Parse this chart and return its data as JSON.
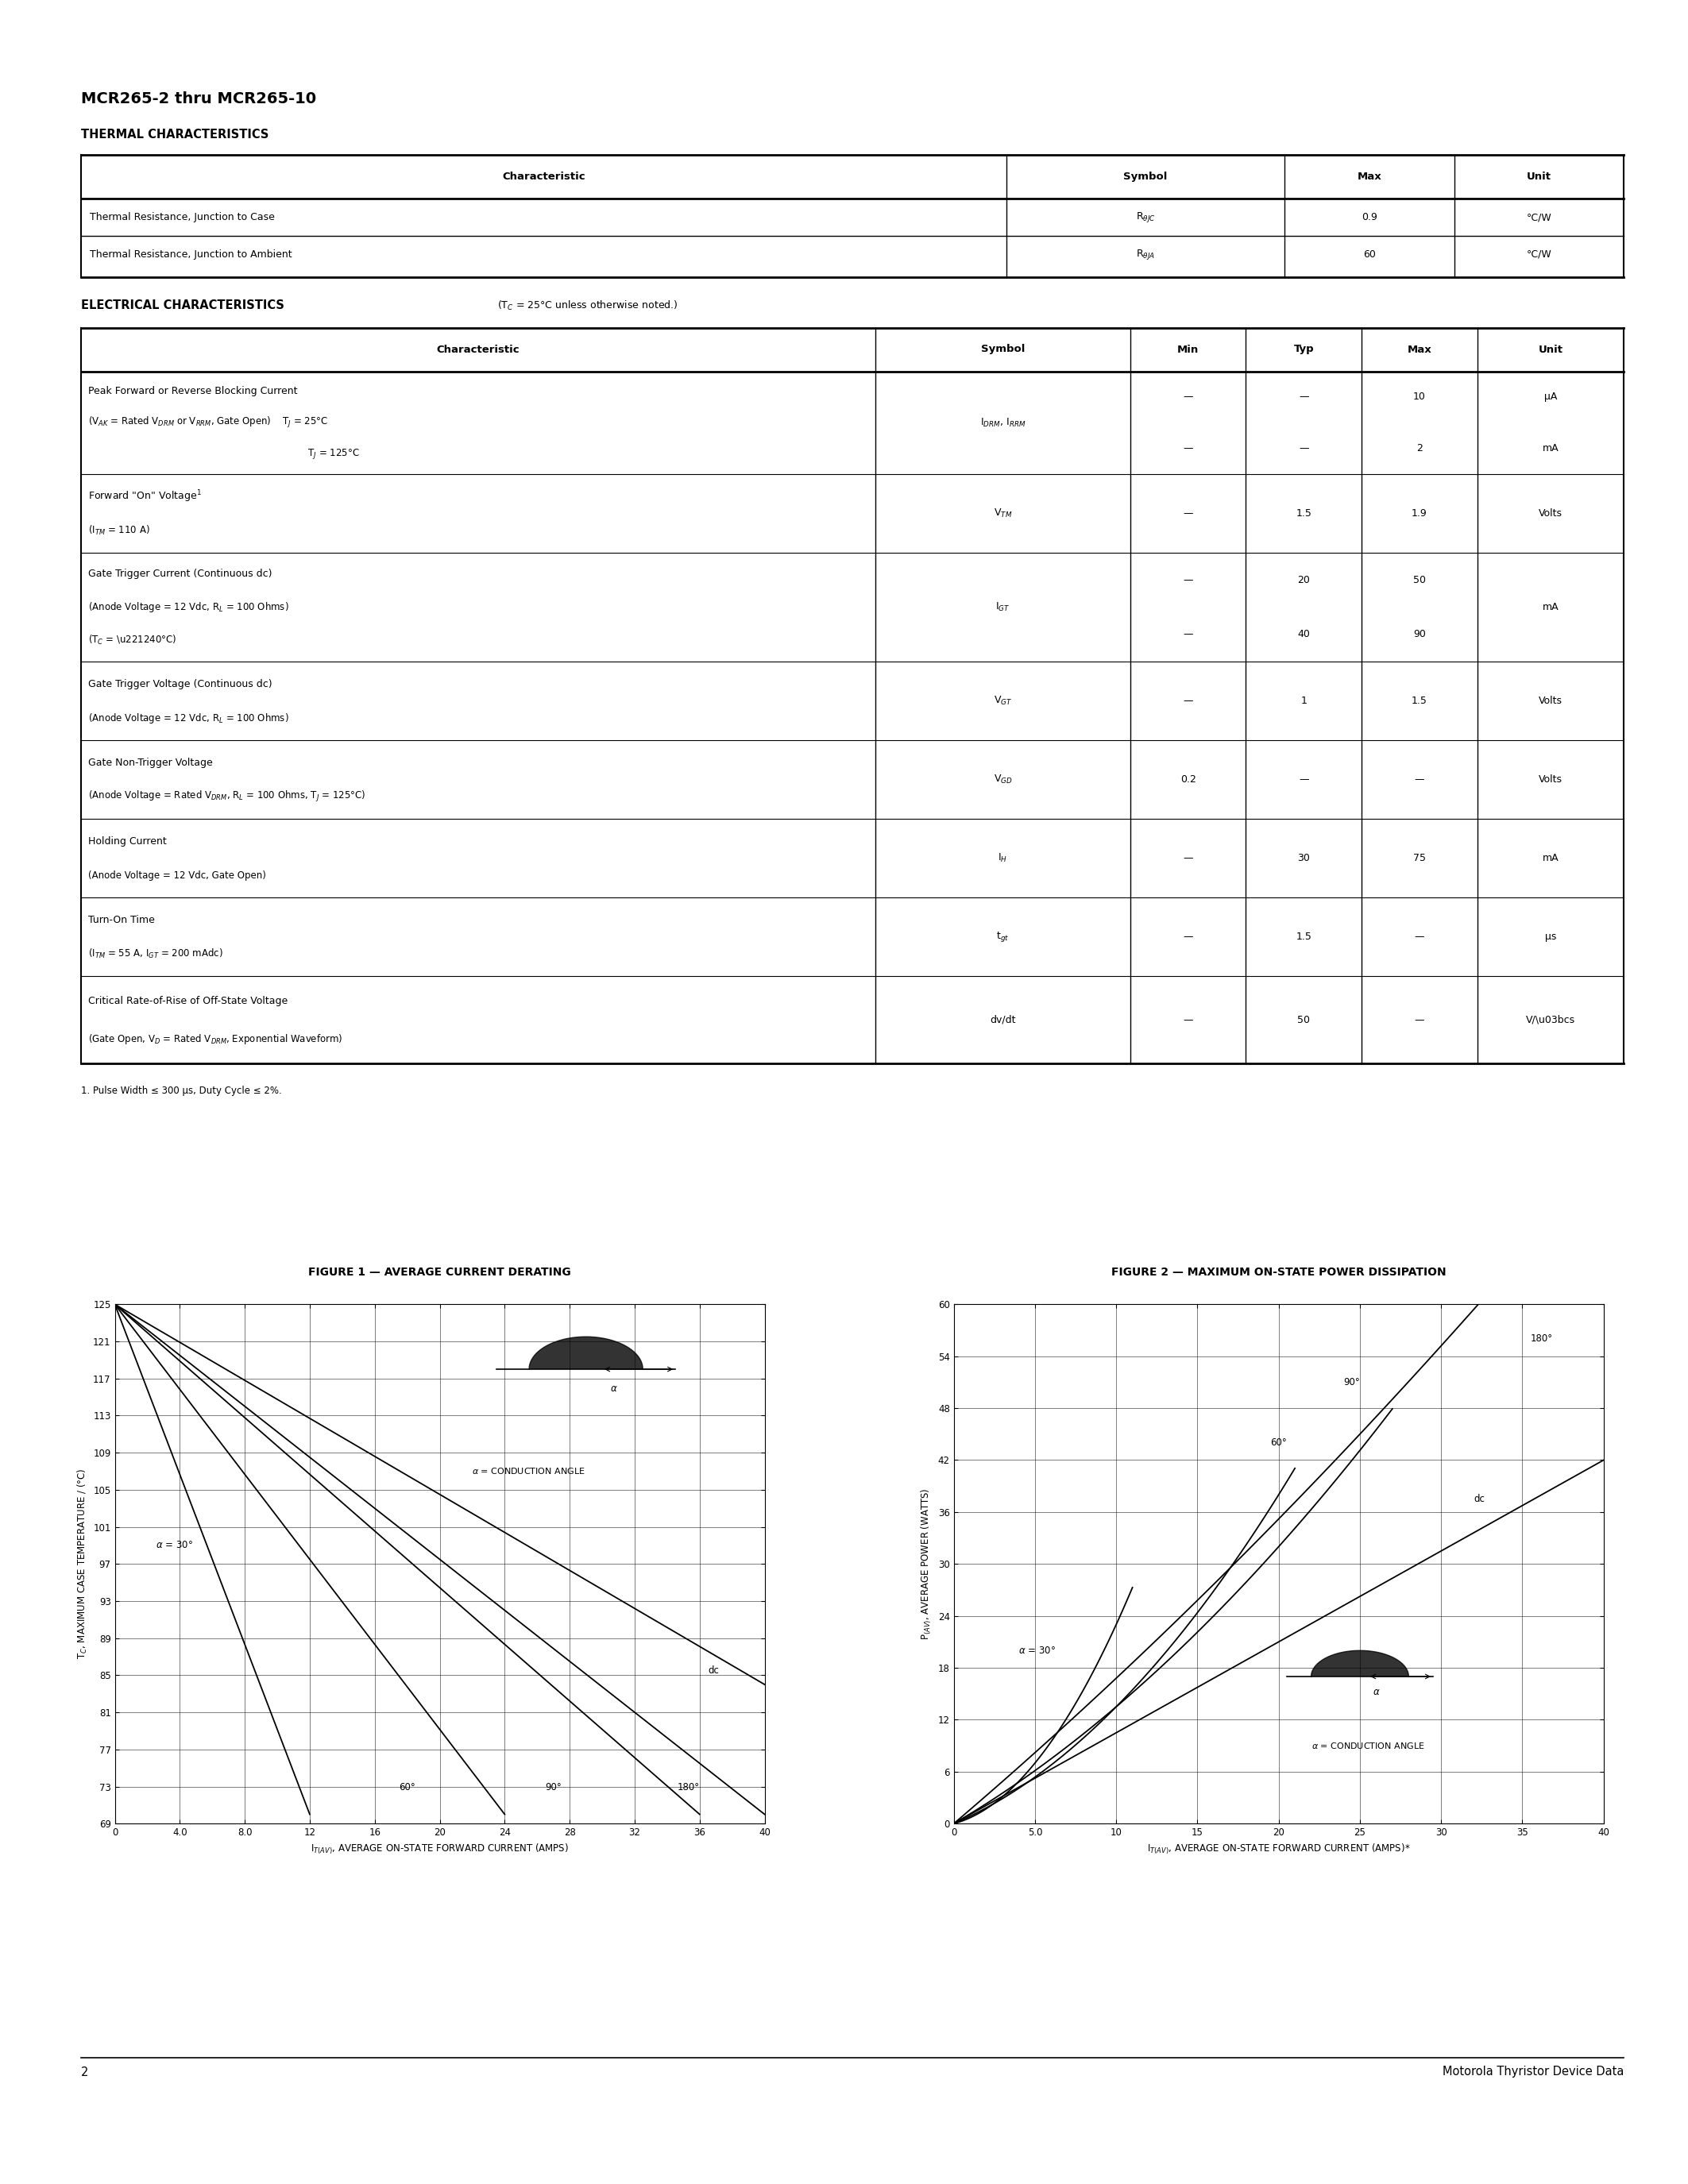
{
  "page_title": "MCR265-2 thru MCR265-10",
  "section1_title": "THERMAL CHARACTERISTICS",
  "thermal_headers": [
    "Characteristic",
    "Symbol",
    "Max",
    "Unit"
  ],
  "thermal_rows": [
    [
      "Thermal Resistance, Junction to Case",
      "R_thetaJC",
      "0.9",
      "°C/W"
    ],
    [
      "Thermal Resistance, Junction to Ambient",
      "R_thetaJA",
      "60",
      "°C/W"
    ]
  ],
  "section2_title": "ELECTRICAL CHARACTERISTICS",
  "section2_subtitle": "(T_C = 25°C unless otherwise noted.)",
  "elec_headers": [
    "Characteristic",
    "Symbol",
    "Min",
    "Typ",
    "Max",
    "Unit"
  ],
  "footnote": "1. Pulse Width ≤ 300 μs, Duty Cycle ≤ 2%.",
  "fig1_title": "FIGURE 1 — AVERAGE CURRENT DERATING",
  "fig1_xlabel": "I_T(AV), AVERAGE ON-STATE FORWARD CURRENT (AMPS)",
  "fig1_ylabel": "T_C, MAXIMUM CASE TEMPERATURE (°C)",
  "fig2_title": "FIGURE 2 — MAXIMUM ON-STATE POWER DISSIPATION",
  "fig2_xlabel": "I_T(AV), AVERAGE ON-STATE FORWARD CURRENT (AMPS)*",
  "fig2_ylabel": "P_(AV), AVERAGE POWER (WATTS)",
  "page_number": "2",
  "footer_text": "Motorola Thyristor Device Data",
  "bg_color": "#ffffff",
  "table_line_color": "#000000",
  "text_color": "#000000"
}
